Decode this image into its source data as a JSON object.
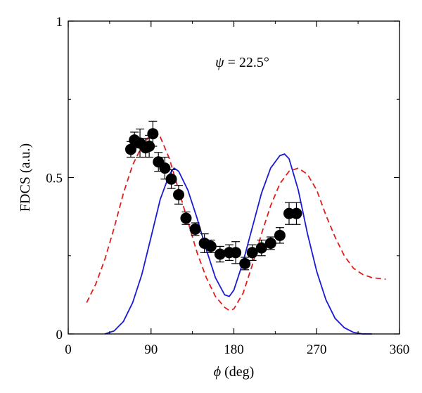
{
  "chart_data": {
    "type": "scatter",
    "title": "",
    "xlabel": {
      "symbol": "ϕ",
      "rest": " (deg)"
    },
    "ylabel": "FDCS (a.u.)",
    "xlim": [
      0,
      360
    ],
    "ylim": [
      0,
      1
    ],
    "x_ticks": [
      0,
      90,
      180,
      270,
      360
    ],
    "y_ticks": [
      {
        "value": 0,
        "label": "0"
      },
      {
        "value": 0.5,
        "label": "0.5"
      },
      {
        "value": 1,
        "label": "1"
      }
    ],
    "annotation": {
      "symbol": "ψ",
      "rest": " = 22.5°",
      "x": 180,
      "y": 0.87
    },
    "grid": false,
    "colors": {
      "theory_solid": "#1a1ad6",
      "theory_dashed": "#e01e1e",
      "experiment": "#000000"
    },
    "experiment": {
      "x": [
        68,
        72,
        78,
        84,
        88,
        92,
        98,
        105,
        112,
        120,
        128,
        138,
        148,
        155,
        165,
        175,
        182,
        192,
        200,
        210,
        220,
        230,
        240,
        248
      ],
      "y": [
        0.59,
        0.62,
        0.61,
        0.595,
        0.6,
        0.64,
        0.55,
        0.53,
        0.495,
        0.445,
        0.37,
        0.335,
        0.29,
        0.28,
        0.255,
        0.26,
        0.26,
        0.225,
        0.26,
        0.275,
        0.29,
        0.315,
        0.385,
        0.385
      ],
      "err": [
        0.025,
        0.025,
        0.045,
        0.03,
        0.035,
        0.04,
        0.03,
        0.035,
        0.03,
        0.03,
        0.02,
        0.02,
        0.03,
        0.02,
        0.025,
        0.025,
        0.035,
        0.02,
        0.025,
        0.025,
        0.02,
        0.025,
        0.035,
        0.035
      ]
    },
    "series": [
      {
        "style": "solid",
        "x": [
          40,
          50,
          60,
          70,
          80,
          90,
          100,
          110,
          115,
          120,
          130,
          140,
          150,
          160,
          170,
          175,
          180,
          190,
          200,
          210,
          220,
          230,
          235,
          240,
          250,
          260,
          270,
          280,
          290,
          300,
          310,
          320,
          330
        ],
        "y": [
          0.0,
          0.01,
          0.04,
          0.1,
          0.19,
          0.31,
          0.43,
          0.51,
          0.53,
          0.52,
          0.46,
          0.37,
          0.27,
          0.18,
          0.125,
          0.12,
          0.14,
          0.23,
          0.34,
          0.45,
          0.53,
          0.57,
          0.575,
          0.56,
          0.46,
          0.32,
          0.2,
          0.11,
          0.05,
          0.02,
          0.005,
          0.0,
          0.0
        ]
      },
      {
        "style": "dashed",
        "x": [
          20,
          30,
          40,
          50,
          60,
          70,
          80,
          90,
          95,
          100,
          110,
          120,
          130,
          140,
          150,
          160,
          170,
          175,
          180,
          190,
          200,
          210,
          220,
          230,
          240,
          250,
          260,
          270,
          280,
          290,
          300,
          310,
          320,
          330,
          345
        ],
        "y": [
          0.1,
          0.16,
          0.24,
          0.34,
          0.45,
          0.54,
          0.6,
          0.64,
          0.64,
          0.63,
          0.56,
          0.46,
          0.36,
          0.26,
          0.18,
          0.12,
          0.085,
          0.075,
          0.08,
          0.13,
          0.22,
          0.32,
          0.41,
          0.48,
          0.52,
          0.53,
          0.51,
          0.46,
          0.38,
          0.31,
          0.25,
          0.21,
          0.19,
          0.18,
          0.175
        ]
      }
    ]
  }
}
